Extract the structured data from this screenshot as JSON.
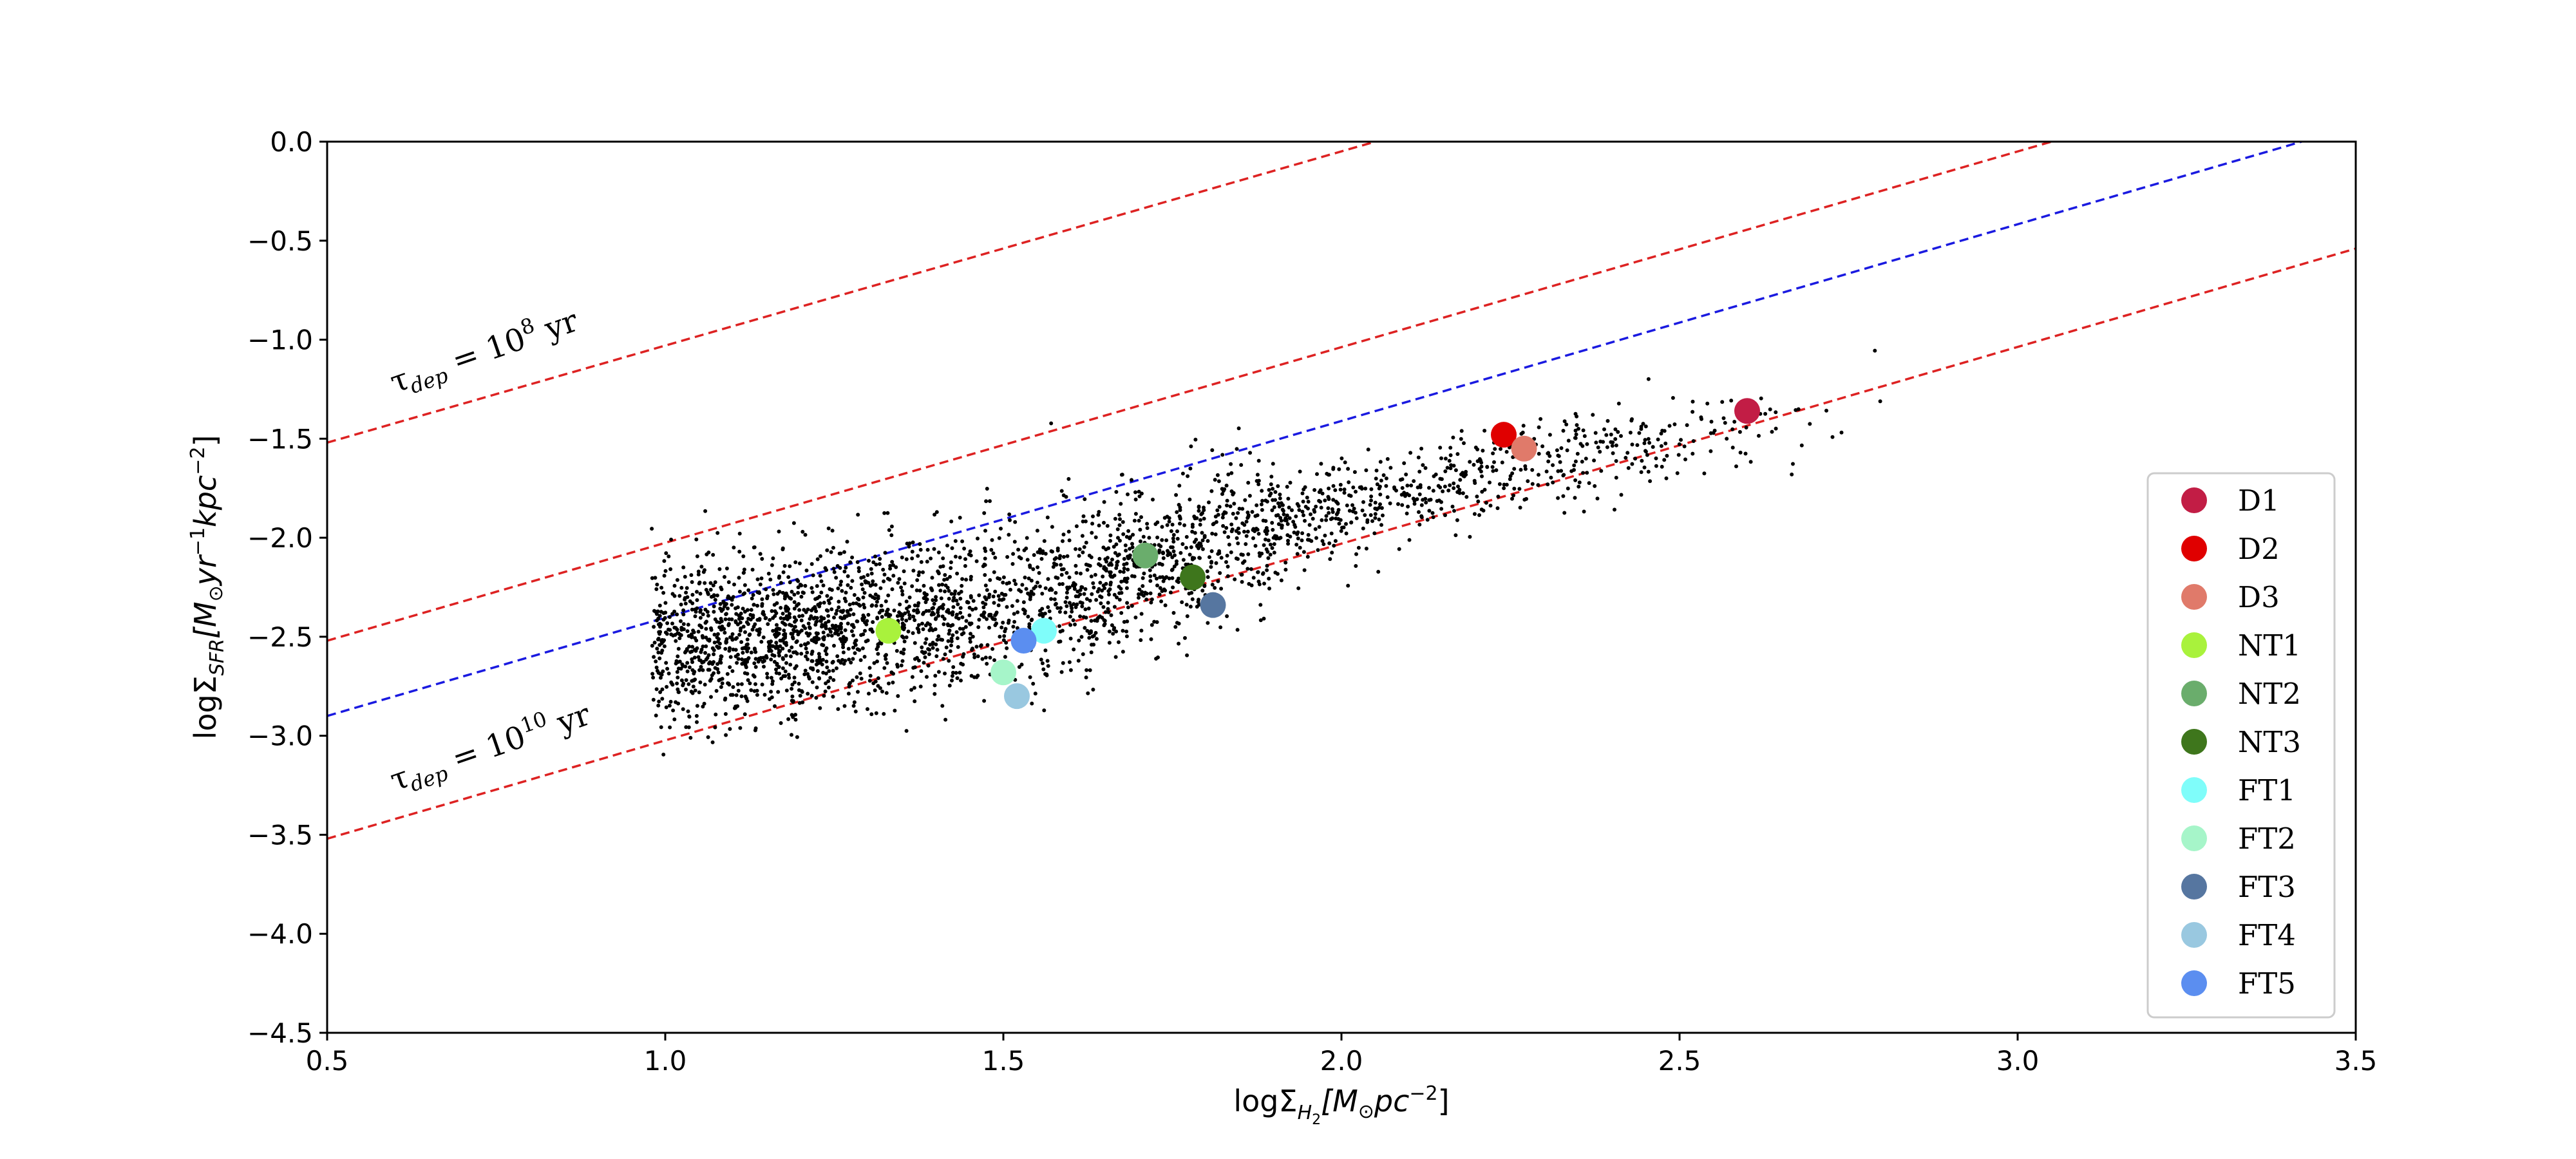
{
  "chart_data": {
    "type": "scatter",
    "title": "",
    "xlabel": "logΣH2[M⊙pc−2]",
    "ylabel": "logΣSFR[M⊙yr−1kpc−2]",
    "xlim": [
      0.5,
      3.5
    ],
    "ylim": [
      -4.5,
      0.0
    ],
    "xticks": [
      "0.5",
      "1.0",
      "1.5",
      "2.0",
      "2.5",
      "3.0",
      "3.5"
    ],
    "yticks": [
      "0.0",
      "−0.5",
      "−1.0",
      "−1.5",
      "−2.0",
      "−2.5",
      "−3.0",
      "−3.5",
      "−4.0",
      "−4.5"
    ],
    "grid": false,
    "legend_position": "lower-right",
    "reference_lines": [
      {
        "name": "tau_dep_1e8",
        "color": "#dd2222",
        "style": "dashed",
        "x": [
          0.5,
          2.05
        ],
        "y": [
          -1.52,
          0.0
        ]
      },
      {
        "name": "tau_dep_1e9",
        "color": "#dd2222",
        "style": "dashed",
        "x": [
          0.5,
          3.05
        ],
        "y": [
          -2.52,
          0.0
        ]
      },
      {
        "name": "blue_fit",
        "color": "#1a1ae0",
        "style": "dashed",
        "x": [
          0.5,
          3.42
        ],
        "y": [
          -2.9,
          0.0
        ]
      },
      {
        "name": "tau_dep_1e10",
        "color": "#dd2222",
        "style": "dashed",
        "x": [
          0.5,
          3.5
        ],
        "y": [
          -3.52,
          -0.54
        ]
      }
    ],
    "annotations": [
      {
        "label": "τdep = 10^8 yr",
        "prefix": "τ",
        "sub": "dep",
        "mid": " = 10",
        "sup": "8",
        "suffix": " yr"
      },
      {
        "label": "τdep = 10^10 yr",
        "prefix": "τ",
        "sub": "dep",
        "mid": " = 10",
        "sup": "10",
        "suffix": " yr"
      }
    ],
    "background_cloud": {
      "color": "#000000",
      "description_points": "dense scatter of pixel data",
      "x_range": [
        0.98,
        2.84
      ],
      "trend": {
        "x": [
          1.0,
          1.5,
          2.0,
          2.5,
          2.8
        ],
        "y": [
          -2.55,
          -2.35,
          -1.85,
          -1.5,
          -1.3
        ]
      }
    },
    "series": [
      {
        "name": "D1",
        "color": "#c21d45",
        "x": 2.6,
        "y": -1.36
      },
      {
        "name": "D2",
        "color": "#e00000",
        "x": 2.24,
        "y": -1.48
      },
      {
        "name": "D3",
        "color": "#e07a6a",
        "x": 2.27,
        "y": -1.55
      },
      {
        "name": "NT1",
        "color": "#a9f23c",
        "x": 1.33,
        "y": -2.47
      },
      {
        "name": "NT2",
        "color": "#6aad6c",
        "x": 1.71,
        "y": -2.09
      },
      {
        "name": "NT3",
        "color": "#3e761c",
        "x": 1.78,
        "y": -2.2
      },
      {
        "name": "FT1",
        "color": "#7ffdfa",
        "x": 1.56,
        "y": -2.47
      },
      {
        "name": "FT2",
        "color": "#a6f5c9",
        "x": 1.5,
        "y": -2.68
      },
      {
        "name": "FT3",
        "color": "#5676a0",
        "x": 1.81,
        "y": -2.34
      },
      {
        "name": "FT4",
        "color": "#99c8e0",
        "x": 1.52,
        "y": -2.8
      },
      {
        "name": "FT5",
        "color": "#5b8ef0",
        "x": 1.53,
        "y": -2.52
      }
    ]
  }
}
